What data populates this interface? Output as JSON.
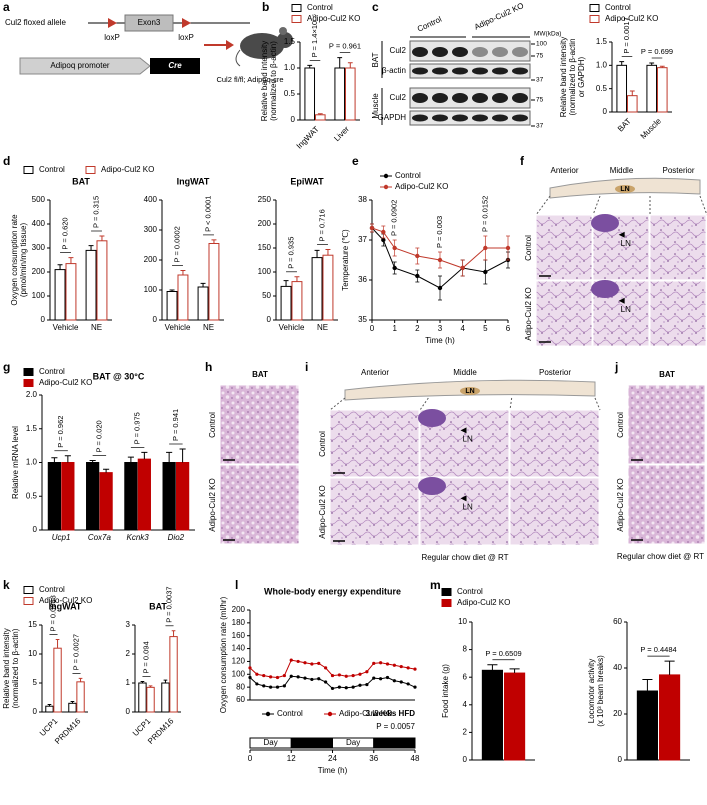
{
  "panel_labels": [
    "a",
    "b",
    "c",
    "d",
    "e",
    "f",
    "g",
    "h",
    "i",
    "j",
    "k",
    "l",
    "m"
  ],
  "diagram_a": {
    "allele_label": "Cul2 floxed allele",
    "exon": "Exon3",
    "loxp": [
      "loxP",
      "loxP"
    ],
    "promoter": "Adipoq promoter",
    "cre": "Cre",
    "mouse_label": "Cul2 fl/fl; Adipoq-cre"
  },
  "blot_c": {
    "groups": [
      "Control",
      "Adipo-Cul2 KO"
    ],
    "mw_title": "MW(kDa)",
    "mw": [
      100,
      75,
      37,
      75,
      37
    ],
    "bands": [
      "Cul2",
      "β-actin",
      "Cul2",
      "GAPDH"
    ],
    "tissues": [
      "BAT",
      "Muscle"
    ]
  },
  "histology_f": {
    "regions": [
      "Anterior",
      "Middle",
      "Posterior"
    ],
    "node": "LN",
    "arrow_labels": [
      "LN",
      "LN"
    ],
    "rows": [
      "Control",
      "Adipo-Cul2 KO"
    ]
  },
  "histology_h": {
    "title": "BAT",
    "rows": [
      "Control",
      "Adipo-Cul2 KO"
    ]
  },
  "histology_i": {
    "regions": [
      "Anterior",
      "Middle",
      "Posterior"
    ],
    "node": "LN",
    "arrow_labels": [
      "LN",
      "LN"
    ],
    "rows": [
      "Control",
      "Adipo-Cul2 KO"
    ],
    "caption": "Regular chow diet @ RT"
  },
  "histology_j": {
    "title": "BAT",
    "rows": [
      "Control",
      "Adipo-Cul2 KO"
    ],
    "caption": "Regular chow diet @ RT"
  },
  "chart_data": [
    {
      "type": "bar",
      "bar_style": "outline",
      "ylabel": [
        "Relative band intensity",
        "(normalized to β-actin)"
      ],
      "categories": [
        "IngWAT",
        "Liver"
      ],
      "series": [
        {
          "name": "Control",
          "color": "#000000",
          "values": [
            1.0,
            1.0
          ],
          "errors": [
            0.05,
            0.2
          ]
        },
        {
          "name": "Adipo-Cul2 KO",
          "color": "#c0392b",
          "values": [
            0.1,
            1.0
          ],
          "errors": [
            0.02,
            0.1
          ]
        }
      ],
      "ylim": [
        0,
        1.5
      ],
      "yticks": [
        0,
        0.5,
        {
          "value": 1,
          "label": "1.0"
        },
        1.5
      ],
      "annotations": [
        "P = 1.4×10⁻⁵",
        "P = 0.961"
      ],
      "legend": true
    },
    {
      "type": "bar",
      "bar_style": "outline",
      "ylabel": [
        "Relative band intensity",
        "(normalized to β-actin",
        "or GAPDH)"
      ],
      "categories": [
        "BAT",
        "Muscle"
      ],
      "series": [
        {
          "name": "Control",
          "color": "#000000",
          "values": [
            1.0,
            1.0
          ],
          "errors": [
            0.08,
            0.05
          ]
        },
        {
          "name": "Adipo-Cul2 KO",
          "color": "#c0392b",
          "values": [
            0.35,
            0.95
          ],
          "errors": [
            0.1,
            0.03
          ]
        }
      ],
      "ylim": [
        0,
        1.5
      ],
      "yticks": [
        0,
        0.5,
        {
          "value": 1,
          "label": "1.0"
        },
        1.5
      ],
      "annotations": [
        "P = 0.0017",
        "P = 0.699"
      ],
      "legend": true
    },
    {
      "type": "bar",
      "bar_style": "outline",
      "title": "BAT",
      "ylabel": [
        "Oxygen consumption rate",
        "(pmol/min/mg tissue)"
      ],
      "categories": [
        "Vehicle",
        "NE"
      ],
      "series": [
        {
          "name": "Control",
          "color": "#000000",
          "values": [
            210,
            290
          ],
          "errors": [
            20,
            20
          ]
        },
        {
          "name": "Adipo-Cul2 KO",
          "color": "#c0392b",
          "values": [
            235,
            330
          ],
          "errors": [
            25,
            20
          ]
        }
      ],
      "ylim": [
        0,
        500
      ],
      "yticks": [
        0,
        100,
        200,
        300,
        400,
        500
      ],
      "annotations": [
        "P = 0.620",
        "P = 0.315"
      ],
      "legend": true
    },
    {
      "type": "bar",
      "bar_style": "outline",
      "title": "IngWAT",
      "categories": [
        "Vehicle",
        "NE"
      ],
      "series": [
        {
          "name": "Control",
          "color": "#000000",
          "values": [
            95,
            110
          ],
          "errors": [
            5,
            12
          ]
        },
        {
          "name": "Adipo-Cul2 KO",
          "color": "#c0392b",
          "values": [
            150,
            255
          ],
          "errors": [
            15,
            12
          ]
        }
      ],
      "ylim": [
        0,
        400
      ],
      "yticks": [
        0,
        100,
        200,
        300,
        400
      ],
      "annotations": [
        "P = 0.0002",
        "P < 0.0001"
      ]
    },
    {
      "type": "bar",
      "bar_style": "outline",
      "title": "EpiWAT",
      "categories": [
        "Vehicle",
        "NE"
      ],
      "series": [
        {
          "name": "Control",
          "color": "#000000",
          "values": [
            70,
            130
          ],
          "errors": [
            12,
            15
          ]
        },
        {
          "name": "Adipo-Cul2 KO",
          "color": "#c0392b",
          "values": [
            80,
            135
          ],
          "errors": [
            10,
            12
          ]
        }
      ],
      "ylim": [
        0,
        250
      ],
      "yticks": [
        0,
        50,
        100,
        150,
        200,
        250
      ],
      "annotations": [
        "P = 0.935",
        "P = 0.716"
      ]
    },
    {
      "type": "line",
      "ylabel": [
        "Temperature (℃)"
      ],
      "xlabel": "Time (h)",
      "x": [
        0,
        0.5,
        1,
        2,
        3,
        4,
        5,
        6
      ],
      "series": [
        {
          "name": "Control",
          "color": "#000000",
          "values": [
            37.3,
            37.0,
            36.3,
            36.1,
            35.8,
            36.3,
            36.2,
            36.5
          ],
          "errors": [
            0.1,
            0.15,
            0.15,
            0.15,
            0.3,
            0.2,
            0.3,
            0.2
          ]
        },
        {
          "name": "Adipo-Cul2 KO",
          "color": "#c0392b",
          "values": [
            37.3,
            37.2,
            36.8,
            36.6,
            36.5,
            36.3,
            36.8,
            36.8
          ],
          "errors": [
            0.1,
            0.15,
            0.2,
            0.2,
            0.2,
            0.2,
            0.3,
            0.3
          ]
        }
      ],
      "xlim": [
        0,
        6
      ],
      "xticks": [
        0,
        1,
        2,
        3,
        4,
        5,
        6
      ],
      "ylim": [
        35,
        38
      ],
      "yticks": [
        35,
        36,
        37,
        38
      ],
      "annotations": [
        {
          "x": 1,
          "label": "P = 0.0902"
        },
        {
          "x": 3,
          "label": "P = 0.003"
        },
        {
          "x": 5,
          "label": "P = 0.0152"
        }
      ],
      "legend": true
    },
    {
      "type": "bar",
      "bar_style": "filled",
      "title": "BAT @ 30°C",
      "title_color": "#1f3c99",
      "ylabel": [
        "Relative mRNA level"
      ],
      "categories": [
        "Ucp1",
        "Cox7a",
        "Kcnk3",
        "Dio2"
      ],
      "series": [
        {
          "name": "Control",
          "color": "#000000",
          "values": [
            1.0,
            1.0,
            1.0,
            1.0
          ],
          "errors": [
            0.07,
            0.03,
            0.08,
            0.15
          ]
        },
        {
          "name": "Adipo-Cul2 KO",
          "color": "#c00000",
          "values": [
            1.0,
            0.85,
            1.05,
            1.0
          ],
          "errors": [
            0.1,
            0.05,
            0.1,
            0.2
          ]
        }
      ],
      "ylim": [
        0,
        2
      ],
      "yticks": [
        0,
        0.5,
        {
          "value": 1,
          "label": "1.0"
        },
        1.5,
        {
          "value": 2,
          "label": "2.0"
        }
      ],
      "annotations": [
        "P = 0.962",
        "P = 0.020",
        "P = 0.975",
        "P = 0.941"
      ],
      "legend": true
    },
    {
      "type": "bar",
      "bar_style": "outline",
      "title": "IngWAT",
      "title_color": "#1f3c99",
      "ylabel": [
        "Relative band intensity",
        "(normalized to β-actin)"
      ],
      "categories": [
        "UCP1",
        "PRDM16"
      ],
      "series": [
        {
          "name": "Control",
          "color": "#000000",
          "values": [
            1.0,
            1.5
          ],
          "errors": [
            0.3,
            0.3
          ]
        },
        {
          "name": "Adipo-Cul2 KO",
          "color": "#c0392b",
          "values": [
            11,
            5.2
          ],
          "errors": [
            1.5,
            0.6
          ]
        }
      ],
      "ylim": [
        0,
        15
      ],
      "yticks": [
        0,
        5,
        10,
        15
      ],
      "annotations": [
        "P = 0.0033",
        "P = 0.0027"
      ],
      "legend": true
    },
    {
      "type": "bar",
      "bar_style": "outline",
      "title": "BAT",
      "title_color": "#1f3c99",
      "categories": [
        "UCP1",
        "PRDM16"
      ],
      "series": [
        {
          "name": "Control",
          "color": "#000000",
          "values": [
            1.0,
            1.0
          ],
          "errors": [
            0.05,
            0.1
          ]
        },
        {
          "name": "Adipo-Cul2 KO",
          "color": "#c0392b",
          "values": [
            0.85,
            2.6
          ],
          "errors": [
            0.05,
            0.2
          ]
        }
      ],
      "ylim": [
        0,
        3
      ],
      "yticks": [
        0,
        1,
        2,
        3
      ],
      "annotations": [
        "P = 0.094",
        "P = 0.0037"
      ]
    },
    {
      "type": "line",
      "title": "Whole-body energy expenditure",
      "ylabel": [
        "Oxygen consumption rate (ml/hr)"
      ],
      "xlabel": "Time (h)",
      "x": [
        0,
        2,
        4,
        6,
        8,
        10,
        12,
        14,
        16,
        18,
        20,
        22,
        24,
        26,
        28,
        30,
        32,
        34,
        36,
        38,
        40,
        42,
        44,
        46,
        48
      ],
      "series": [
        {
          "name": "Control",
          "color": "#000000",
          "values": [
            95,
            85,
            82,
            80,
            80,
            82,
            97,
            96,
            94,
            92,
            93,
            88,
            78,
            80,
            79,
            80,
            83,
            84,
            94,
            93,
            95,
            90,
            88,
            85,
            80
          ]
        },
        {
          "name": "Adipo-Cul2 KO",
          "color": "#c00000",
          "values": [
            110,
            100,
            98,
            96,
            95,
            98,
            122,
            120,
            118,
            116,
            117,
            110,
            98,
            99,
            97,
            98,
            100,
            104,
            117,
            118,
            116,
            114,
            112,
            110,
            108
          ]
        }
      ],
      "xlim": [
        0,
        48
      ],
      "xticks": [
        0,
        12,
        24,
        36,
        48
      ],
      "ylim": [
        60,
        200
      ],
      "yticks": [
        60,
        80,
        100,
        120,
        140,
        160,
        180,
        200
      ],
      "note": "3 weeks HFD",
      "note_color": "#1f3c99",
      "p_value": "P = 0.0057",
      "light_cycle": [
        "Day",
        "Night",
        "Day",
        "Night"
      ],
      "legend": true
    },
    {
      "type": "bar",
      "bar_style": "filled",
      "ylabel": [
        "Food intake (g)"
      ],
      "categories": [
        null
      ],
      "series": [
        {
          "name": "Control",
          "color": "#000000",
          "values": [
            6.5
          ],
          "errors": [
            0.4
          ]
        },
        {
          "name": "Adipo-Cul2 KO",
          "color": "#c00000",
          "values": [
            6.3
          ],
          "errors": [
            0.3
          ]
        }
      ],
      "ylim": [
        0,
        10
      ],
      "yticks": [
        0,
        2,
        4,
        6,
        8,
        10
      ],
      "annotations": [
        "P = 0.6509"
      ],
      "legend": true
    },
    {
      "type": "bar",
      "bar_style": "filled",
      "ylabel": [
        "Locomotor activity",
        "(x 10³ beam breaks)"
      ],
      "categories": [
        null
      ],
      "series": [
        {
          "name": "Control",
          "color": "#000000",
          "values": [
            30
          ],
          "errors": [
            5
          ]
        },
        {
          "name": "Adipo-Cul2 KO",
          "color": "#c00000",
          "values": [
            37
          ],
          "errors": [
            6
          ]
        }
      ],
      "ylim": [
        0,
        60
      ],
      "yticks": [
        0,
        20,
        40,
        60
      ],
      "annotations": [
        "P = 0.4484"
      ]
    }
  ]
}
